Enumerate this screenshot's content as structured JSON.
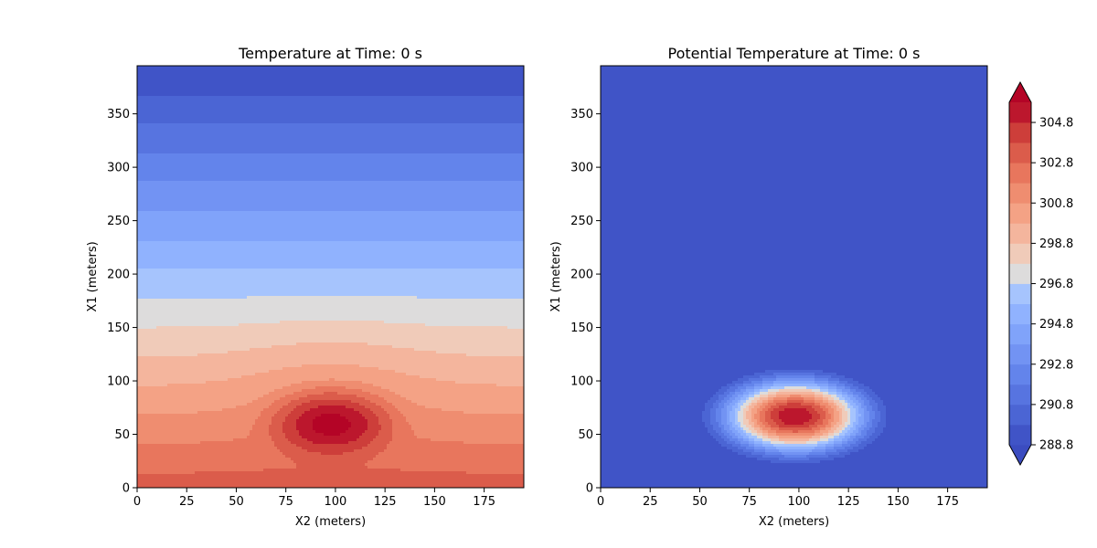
{
  "chart_data": [
    {
      "type": "heatmap",
      "style": "filled-contour",
      "title": "Temperature at Time: 0 s",
      "xlabel": "X2 (meters)",
      "ylabel": "X1 (meters)",
      "xlim": [
        0,
        195
      ],
      "ylim": [
        0,
        395
      ],
      "xticks": [
        0,
        25,
        50,
        75,
        100,
        125,
        150,
        175
      ],
      "yticks": [
        0,
        50,
        100,
        150,
        200,
        250,
        300,
        350
      ],
      "colormap": "coolwarm",
      "field": {
        "description": "Background temperature decreasing with height (approx. 303.3 at X1=0 to 288.8 at X1=395) plus a warm bubble",
        "base_at_bottom": 303.3,
        "lapse_per_meter": 0.0367,
        "bubble_center": [
          98,
          62
        ],
        "bubble_radius": 48,
        "bubble_amplitude": 4.5
      }
    },
    {
      "type": "heatmap",
      "style": "filled-contour",
      "title": "Potential Temperature at Time: 0 s",
      "xlabel": "X2 (meters)",
      "ylabel": "X1 (meters)",
      "xlim": [
        0,
        195
      ],
      "ylim": [
        0,
        395
      ],
      "xticks": [
        0,
        25,
        50,
        75,
        100,
        125,
        150,
        175
      ],
      "yticks": [
        0,
        50,
        100,
        150,
        200,
        250,
        300,
        350
      ],
      "colormap": "coolwarm",
      "field": {
        "description": "Uniform 288.8 background with a warm bubble",
        "background": 288.8,
        "bubble_center": [
          98,
          67
        ],
        "bubble_radius": 55,
        "bubble_amplitude": 17
      }
    }
  ],
  "colorbar": {
    "vmin": 288.8,
    "vmax": 305.8,
    "levels_step": 1.0,
    "extend": "both",
    "ticks": [
      "304.8",
      "302.8",
      "300.8",
      "298.8",
      "296.8",
      "294.8",
      "292.8",
      "290.8",
      "288.8"
    ]
  },
  "colors": {
    "cold": "#3b4cc0",
    "neutral": "#dddcdc",
    "warm": "#b40426"
  }
}
